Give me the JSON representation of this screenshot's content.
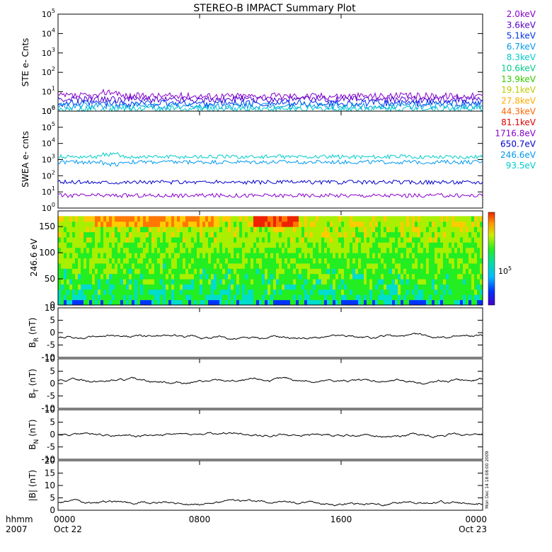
{
  "chart_data": {
    "type": "line",
    "title": "STEREO-B IMPACT Summary Plot",
    "xaxis": {
      "unit_label": "hhmm",
      "year_label": "2007",
      "ticks": [
        {
          "label": "0000",
          "sub": "Oct 22",
          "hour": 0
        },
        {
          "label": "0800",
          "sub": "",
          "hour": 8
        },
        {
          "label": "1600",
          "sub": "",
          "hour": 16
        },
        {
          "label": "0000",
          "sub": "Oct 23",
          "hour": 24
        }
      ],
      "range_hours": [
        0,
        24
      ]
    },
    "ste": {
      "ylabel": "STE e- Cnts",
      "scale": "log",
      "ylim": [
        1,
        100000
      ],
      "legend": [
        {
          "label": "2.0keV",
          "color": "#8800cc"
        },
        {
          "label": "3.6keV",
          "color": "#5500cc"
        },
        {
          "label": "5.1keV",
          "color": "#0033ee"
        },
        {
          "label": "6.7keV",
          "color": "#0099ee"
        },
        {
          "label": "8.3keV",
          "color": "#00cccc"
        },
        {
          "label": "10.6keV",
          "color": "#00cc88"
        },
        {
          "label": "13.9keV",
          "color": "#33cc00"
        },
        {
          "label": "19.1keV",
          "color": "#bbcc00"
        },
        {
          "label": "27.8keV",
          "color": "#ffaa00"
        },
        {
          "label": "44.3keV",
          "color": "#ff6600"
        },
        {
          "label": "81.1keV",
          "color": "#dd0000"
        }
      ],
      "series": [
        {
          "label": "2.0keV",
          "level": 6
        },
        {
          "label": "3.6keV",
          "level": 4
        },
        {
          "label": "5.1keV",
          "level": 2.5
        },
        {
          "label": "6.7keV",
          "level": 1.8
        },
        {
          "label": "8.3keV",
          "level": 1.3
        }
      ]
    },
    "swea": {
      "ylabel": "SWEA e- cnts",
      "scale": "log",
      "ylim": [
        1,
        1000000
      ],
      "legend": [
        {
          "label": "1716.8eV",
          "color": "#8800cc"
        },
        {
          "label": "650.7eV",
          "color": "#0000cc"
        },
        {
          "label": "246.6eV",
          "color": "#0099ee"
        },
        {
          "label": "93.5eV",
          "color": "#00cccc"
        }
      ],
      "series": [
        {
          "label": "93.5eV",
          "level": 1500
        },
        {
          "label": "246.6eV",
          "level": 700
        },
        {
          "label": "650.7eV",
          "level": 40
        },
        {
          "label": "1716.8eV",
          "level": 6
        }
      ]
    },
    "pad": {
      "ylabel": "246.6 eV",
      "scale": "linear",
      "ylim": [
        0,
        180
      ],
      "yticks": [
        0,
        50,
        100,
        150
      ],
      "colorbar_label": "10",
      "colorbar_exp": "5",
      "type": "heatmap"
    },
    "mag": [
      {
        "ylabel": "B",
        "sub": "R",
        "unit": "(nT)",
        "ylim": [
          -10,
          10
        ],
        "yticks": [
          -10,
          -5,
          0,
          5,
          10
        ],
        "baseline": -2
      },
      {
        "ylabel": "B",
        "sub": "T",
        "unit": "(nT)",
        "ylim": [
          -10,
          10
        ],
        "yticks": [
          -10,
          -5,
          0,
          5,
          10
        ],
        "baseline": 1
      },
      {
        "ylabel": "B",
        "sub": "N",
        "unit": "(nT)",
        "ylim": [
          -10,
          10
        ],
        "yticks": [
          -10,
          -5,
          0,
          5,
          10
        ],
        "baseline": 0
      },
      {
        "ylabel": "|B|",
        "sub": "",
        "unit": "(nT)",
        "ylim": [
          0,
          20
        ],
        "yticks": [
          0,
          5,
          10,
          15,
          20
        ],
        "baseline": 3
      }
    ],
    "timestamp": "Mon Dec 14 18:08:00 2009"
  }
}
